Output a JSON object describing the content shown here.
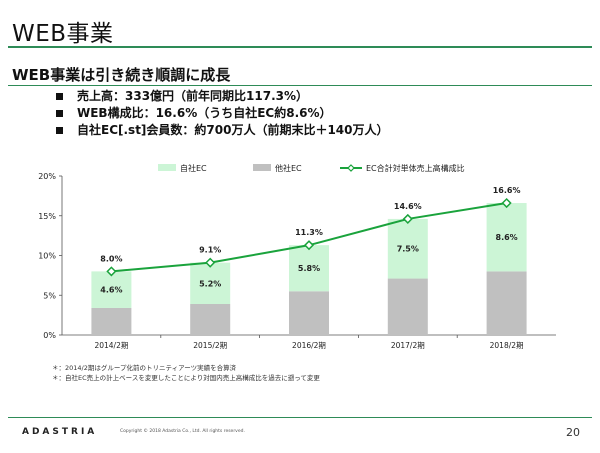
{
  "slide": {
    "title": "WEB事業",
    "subtitle": "WEB事業は引き続き順調に成長",
    "bullets": [
      "売上高：333億円（前年同期比117.3%）",
      "WEB構成比：16.6%（うち自社EC約8.6%）",
      "自社EC[.st]会員数：約700万人（前期末比＋140万人）"
    ],
    "notes": [
      "＊：2014/2期はグループ化前のトリニティアーツ実績を合算済",
      "＊：自社EC売上の計上ベースを変更したことにより対国内売上高構成比を過去に遡って変更"
    ],
    "logo": "ADASTRIA",
    "copyright": "Copyright © 2018 Adastria Co., Ltd. All rights reserved.",
    "page_number": "20"
  },
  "chart_data": {
    "type": "bar",
    "categories": [
      "2014/2期",
      "2015/2期",
      "2016/2期",
      "2017/2期",
      "2018/2期"
    ],
    "series": [
      {
        "name": "他社EC",
        "kind": "stacked-bar",
        "color": "#c0c0c0",
        "values": [
          3.4,
          3.9,
          5.5,
          7.1,
          8.0
        ]
      },
      {
        "name": "自社EC",
        "kind": "stacked-bar",
        "color": "#ccf5d6",
        "values": [
          4.6,
          5.2,
          5.8,
          7.5,
          8.6
        ],
        "labels": [
          "4.6%",
          "5.2%",
          "5.8%",
          "7.5%",
          "8.6%"
        ]
      },
      {
        "name": "EC合計対単体売上高構成比",
        "kind": "line",
        "color": "#1aa33c",
        "values": [
          8.0,
          9.1,
          11.3,
          14.6,
          16.6
        ],
        "labels": [
          "8.0%",
          "9.1%",
          "11.3%",
          "14.6%",
          "16.6%"
        ]
      }
    ],
    "y_ticks": [
      "0%",
      "5%",
      "10%",
      "15%",
      "20%"
    ],
    "ylim": [
      0,
      20
    ],
    "legend_position": "top",
    "grid": false
  }
}
